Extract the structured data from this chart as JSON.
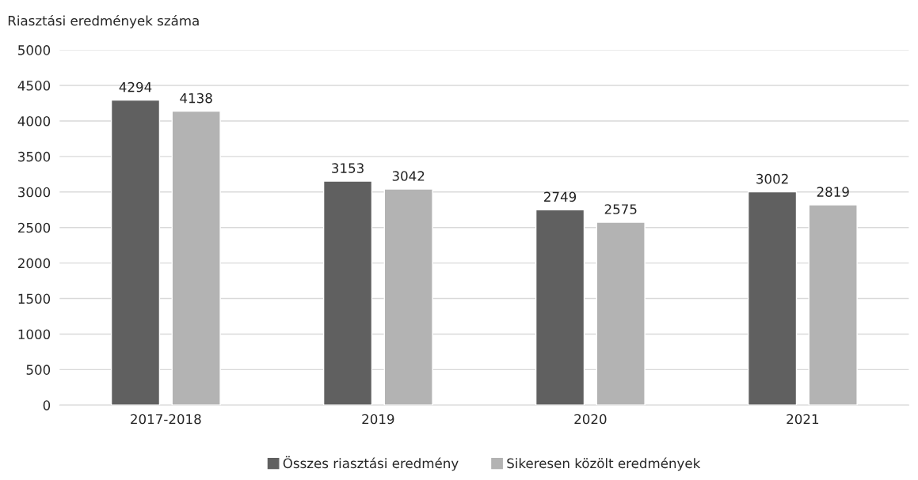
{
  "chart_data": {
    "type": "bar",
    "ylabel": "Riasztási eredmények száma",
    "categories": [
      "2017-2018",
      "2019",
      "2020",
      "2021"
    ],
    "series": [
      {
        "name": "Összes riasztási eredmény",
        "color": "#606060",
        "values": [
          4294,
          3153,
          2749,
          3002
        ]
      },
      {
        "name": "Sikeresen közölt eredmények",
        "color": "#b3b3b3",
        "values": [
          4138,
          3042,
          2575,
          2819
        ]
      }
    ],
    "ylim": [
      0,
      5000
    ],
    "yticks": [
      0,
      500,
      1000,
      1500,
      2000,
      2500,
      3000,
      3500,
      4000,
      4500,
      5000
    ],
    "grid": "y",
    "legend": "bottom",
    "data_labels": true
  }
}
